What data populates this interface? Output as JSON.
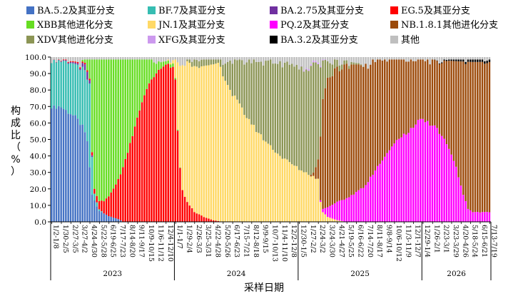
{
  "chart_data": {
    "type": "bar",
    "stacked": true,
    "normalized_percent": true,
    "xlabel": "采样日期",
    "ylabel": "构成比（%）",
    "ylim": [
      0,
      100
    ],
    "yticks": [
      "0.0",
      "10.0",
      "20.0",
      "30.0",
      "40.0",
      "50.0",
      "60.0",
      "70.0",
      "80.0",
      "90.0",
      "100.0"
    ],
    "legend_position": "top",
    "legend": [
      {
        "name": "BA.5.2及其亚分支",
        "color": "#4472c4"
      },
      {
        "name": "BF.7及其亚分支",
        "color": "#36bdb2"
      },
      {
        "name": "BA.2.75及其亚分支",
        "color": "#7030a0"
      },
      {
        "name": "EG.5及其亚分支",
        "color": "#ff0000"
      },
      {
        "name": "XBB其他进化分支",
        "color": "#66dd22"
      },
      {
        "name": "JN.1及其亚分支",
        "color": "#ffd966"
      },
      {
        "name": "PQ.2及其亚分支",
        "color": "#ff00ff"
      },
      {
        "name": "NB.1.8.1其他进化分支",
        "color": "#9c4a0a"
      },
      {
        "name": "XDV其他进化分支",
        "color": "#8c9555"
      },
      {
        "name": "XFG及其亚分支",
        "color": "#cc99ee"
      },
      {
        "name": "BA.3.2及其亚分支",
        "color": "#000000"
      },
      {
        "name": "其他",
        "color": "#bfbfbf"
      }
    ],
    "x_tick_labels": [
      "1/2-1/8",
      "1/30-2/5",
      "2/27-3/5",
      "3/27-4/2",
      "4/24-4/30",
      "5/22-5/28",
      "6/19-6/25",
      "7/17-7/23",
      "8/14-8/20",
      "9/11-9/17",
      "10/9-10/15",
      "11/6-11/12",
      "12/4-12/10",
      "1/1-1/7",
      "1/29-2/4",
      "2/26-3/3",
      "3/25-3/31",
      "4/22-4/28",
      "5/20-5/26",
      "6/17-6/23",
      "7/15-7/21",
      "8/12-8/18",
      "9/9-9/15",
      "10/7-10/13",
      "11/4-11/10",
      "12/2-12/8",
      "12/30-1/5",
      "1/27-2/2",
      "2/24-3/2",
      "3/24-3/30",
      "4/21-4/27",
      "5/19-5/25",
      "6/16-6/22",
      "7/14-7/20",
      "8/11-8/17",
      "9/8-9/14",
      "10/6-10/12",
      "11/3-11/9",
      "12/1-12/7",
      "12/29-1/4",
      "1/26-2/1",
      "2/23-3/1",
      "3/23-3/29",
      "4/20-4/26",
      "5/18-5/24",
      "6/15-6/21",
      "7/13-7/19"
    ],
    "years": [
      {
        "label": "2023",
        "from": 0,
        "to": 52
      },
      {
        "label": "2024",
        "from": 52,
        "to": 104
      },
      {
        "label": "2025",
        "from": 104,
        "to": 156
      },
      {
        "label": "2026",
        "from": 156,
        "to": 185
      }
    ],
    "weeks": 185,
    "series_keyframes": {
      "BA.5.2及其亚分支": [
        [
          0,
          71
        ],
        [
          4,
          70
        ],
        [
          8,
          66
        ],
        [
          12,
          60
        ],
        [
          15,
          52
        ],
        [
          16,
          33
        ],
        [
          17,
          17
        ],
        [
          18,
          13
        ],
        [
          20,
          7
        ],
        [
          24,
          4
        ],
        [
          28,
          2
        ],
        [
          30,
          0
        ]
      ],
      "BF.7及其亚分支": [
        [
          0,
          28
        ],
        [
          4,
          28
        ],
        [
          8,
          31
        ],
        [
          12,
          33
        ],
        [
          15,
          40
        ],
        [
          16,
          52
        ],
        [
          17,
          24
        ],
        [
          18,
          4
        ],
        [
          20,
          1
        ],
        [
          22,
          0
        ]
      ],
      "BA.2.75及其亚分支": [
        [
          0,
          0
        ],
        [
          12,
          1
        ],
        [
          15,
          5
        ],
        [
          16,
          2
        ],
        [
          18,
          0
        ]
      ],
      "EG.5及其亚分支": [
        [
          0,
          0
        ],
        [
          16,
          1
        ],
        [
          18,
          3
        ],
        [
          22,
          8
        ],
        [
          26,
          20
        ],
        [
          30,
          36
        ],
        [
          34,
          57
        ],
        [
          38,
          78
        ],
        [
          42,
          89
        ],
        [
          46,
          94
        ],
        [
          48,
          96
        ],
        [
          51,
          94
        ],
        [
          52,
          86
        ],
        [
          53,
          55
        ],
        [
          54,
          32
        ],
        [
          55,
          19
        ],
        [
          57,
          12
        ],
        [
          60,
          6
        ],
        [
          64,
          3
        ],
        [
          68,
          1
        ],
        [
          72,
          0
        ]
      ],
      "XBB其他进化分支": [
        [
          0,
          0
        ],
        [
          12,
          0
        ],
        [
          14,
          2
        ],
        [
          16,
          12
        ],
        [
          17,
          58
        ],
        [
          18,
          80
        ],
        [
          20,
          90
        ],
        [
          24,
          93
        ],
        [
          28,
          85
        ],
        [
          32,
          61
        ],
        [
          36,
          38
        ],
        [
          40,
          18
        ],
        [
          44,
          6
        ],
        [
          48,
          2
        ],
        [
          51,
          2
        ],
        [
          52,
          1
        ],
        [
          55,
          0
        ]
      ],
      "JN.1及其亚分支": [
        [
          0,
          0
        ],
        [
          48,
          0
        ],
        [
          50,
          1
        ],
        [
          51,
          2
        ],
        [
          52,
          11
        ],
        [
          53,
          41
        ],
        [
          54,
          62
        ],
        [
          55,
          76
        ],
        [
          57,
          85
        ],
        [
          60,
          90
        ],
        [
          64,
          93
        ],
        [
          68,
          95
        ],
        [
          70,
          97
        ],
        [
          72,
          91
        ],
        [
          75,
          80
        ],
        [
          80,
          68
        ],
        [
          84,
          60
        ],
        [
          88,
          52
        ],
        [
          92,
          46
        ],
        [
          96,
          40
        ],
        [
          100,
          36
        ],
        [
          104,
          32
        ],
        [
          108,
          29
        ],
        [
          112,
          26
        ],
        [
          113,
          12
        ],
        [
          114,
          6
        ],
        [
          116,
          3
        ],
        [
          120,
          1
        ],
        [
          124,
          0
        ]
      ],
      "PQ.2及其亚分支": [
        [
          0,
          0
        ],
        [
          112,
          0
        ],
        [
          114,
          2
        ],
        [
          116,
          6
        ],
        [
          120,
          11
        ],
        [
          126,
          16
        ],
        [
          132,
          22
        ],
        [
          136,
          32
        ],
        [
          140,
          40
        ],
        [
          144,
          48
        ],
        [
          148,
          53
        ],
        [
          152,
          58
        ],
        [
          155,
          63
        ],
        [
          158,
          61
        ],
        [
          161,
          58
        ],
        [
          164,
          53
        ],
        [
          167,
          45
        ],
        [
          170,
          33
        ],
        [
          173,
          17
        ],
        [
          175,
          8
        ],
        [
          177,
          6
        ],
        [
          180,
          6
        ],
        [
          184,
          6
        ]
      ],
      "NB.1.8.1其他进化分支": [
        [
          0,
          0
        ],
        [
          108,
          0
        ],
        [
          110,
          2
        ],
        [
          112,
          12
        ],
        [
          114,
          65
        ],
        [
          116,
          78
        ],
        [
          120,
          81
        ],
        [
          124,
          80
        ],
        [
          130,
          75
        ],
        [
          136,
          67
        ],
        [
          140,
          59
        ],
        [
          144,
          51
        ],
        [
          148,
          46
        ],
        [
          152,
          40
        ],
        [
          155,
          36
        ],
        [
          158,
          37
        ],
        [
          161,
          40
        ],
        [
          164,
          45
        ],
        [
          167,
          53
        ],
        [
          170,
          65
        ],
        [
          173,
          81
        ],
        [
          175,
          90
        ],
        [
          177,
          92
        ],
        [
          180,
          92
        ],
        [
          184,
          91
        ]
      ],
      "XDV其他进化分支": [
        [
          0,
          0
        ],
        [
          56,
          0
        ],
        [
          58,
          2
        ],
        [
          60,
          4
        ],
        [
          64,
          4
        ],
        [
          68,
          3
        ],
        [
          70,
          2
        ],
        [
          72,
          7
        ],
        [
          75,
          18
        ],
        [
          80,
          29
        ],
        [
          84,
          38
        ],
        [
          88,
          45
        ],
        [
          92,
          51
        ],
        [
          96,
          56
        ],
        [
          100,
          60
        ],
        [
          104,
          62
        ],
        [
          108,
          63
        ],
        [
          110,
          66
        ],
        [
          112,
          58
        ],
        [
          114,
          24
        ],
        [
          116,
          10
        ],
        [
          120,
          4
        ],
        [
          124,
          2
        ],
        [
          128,
          1
        ],
        [
          132,
          0
        ]
      ],
      "XFG及其亚分支": [
        [
          0,
          0
        ],
        [
          104,
          0
        ],
        [
          108,
          1
        ],
        [
          112,
          1
        ],
        [
          116,
          0
        ]
      ],
      "BA.3.2及其亚分支": [
        [
          0,
          0
        ],
        [
          160,
          0
        ],
        [
          164,
          0.5
        ],
        [
          170,
          1
        ],
        [
          176,
          1.5
        ],
        [
          184,
          1.5
        ]
      ]
    }
  }
}
